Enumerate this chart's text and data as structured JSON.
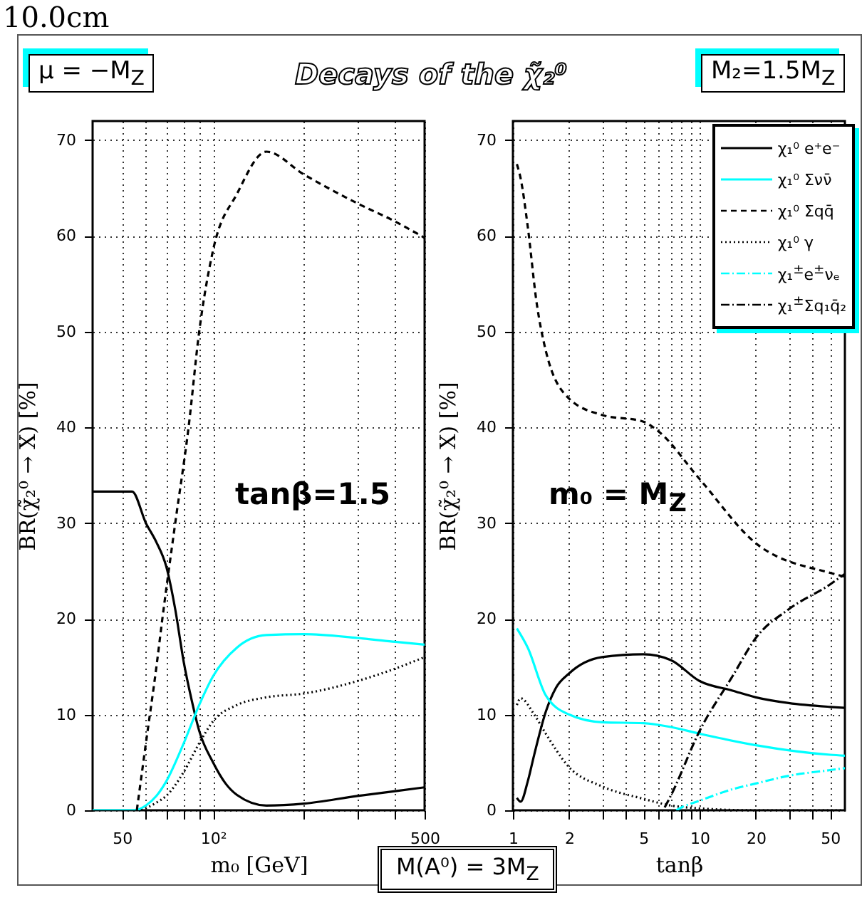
{
  "chart_data": [
    {
      "type": "line",
      "title": "Decays of the χ̃₂⁰",
      "xlabel": "m₀ [GeV]",
      "ylabel": "BR(χ̃₂⁰ → X) [%]",
      "log": "x",
      "grid": true,
      "xlim": [
        40,
        500
      ],
      "ylim": [
        0,
        72
      ],
      "xticks": [
        50,
        {
          "value": 60,
          "label": null
        },
        {
          "value": 70,
          "label": null
        },
        {
          "value": 80,
          "label": null
        },
        {
          "value": 90,
          "label": null
        },
        {
          "value": 100,
          "label": "10²"
        },
        {
          "value": 200,
          "label": null
        },
        {
          "value": 300,
          "label": null
        },
        {
          "value": 400,
          "label": null
        },
        500
      ],
      "yticks": [
        0,
        10,
        20,
        30,
        40,
        50,
        60,
        70
      ],
      "annotations": [
        "μ = −M$_{Z}$",
        "tanβ=1.5",
        "10.0cm"
      ],
      "series": [
        {
          "color": "#000000",
          "line_style": "solid",
          "x": [
            40,
            54,
            60,
            65,
            70,
            75,
            80,
            85,
            90,
            100,
            110,
            120,
            150,
            200,
            300,
            400,
            500
          ],
          "values": [
            33.3,
            33.3,
            30,
            28,
            25.5,
            21,
            15.5,
            11.5,
            8.3,
            5,
            2.8,
            1.6,
            0.5,
            0.7,
            1.5,
            2,
            2.4
          ]
        },
        {
          "color": "#00ffff",
          "line_style": "solid",
          "x": [
            40,
            55,
            60,
            65,
            70,
            80,
            90,
            100,
            120,
            150,
            200,
            300,
            400,
            500
          ],
          "values": [
            0,
            0,
            0.5,
            1.5,
            3,
            7,
            11,
            14,
            17,
            18.3,
            18.4,
            18,
            17.6,
            17.3
          ]
        },
        {
          "color": "#000000",
          "line_style": "dashed",
          "x": [
            56,
            60,
            65,
            68,
            75,
            83,
            90,
            100,
            120,
            150,
            200,
            300,
            400,
            500
          ],
          "values": [
            0,
            7,
            15,
            20,
            30,
            40,
            50,
            58.5,
            64.4,
            68.8,
            66.4,
            63.4,
            61.5,
            59.8
          ]
        },
        {
          "color": "#000000",
          "line_style": "dotted",
          "x": [
            58,
            65,
            70,
            80,
            90,
            100,
            120,
            150,
            200,
            300,
            400,
            500
          ],
          "values": [
            0,
            0.8,
            1.5,
            4,
            7,
            9.3,
            11,
            11.8,
            12.2,
            13.5,
            14.8,
            16
          ]
        }
      ]
    },
    {
      "type": "line",
      "xlabel": "tanβ",
      "ylabel": "BR(χ̃₂⁰ → X) [%]",
      "log": "x",
      "grid": true,
      "legend": "top right",
      "xlim": [
        1,
        60
      ],
      "ylim": [
        0,
        72
      ],
      "xticks": [
        1,
        2,
        {
          "value": 3,
          "label": null
        },
        {
          "value": 4,
          "label": null
        },
        5,
        {
          "value": 6,
          "label": null
        },
        {
          "value": 7,
          "label": null
        },
        {
          "value": 8,
          "label": null
        },
        {
          "value": 9,
          "label": null
        },
        10,
        20,
        {
          "value": 30,
          "label": null
        },
        {
          "value": 40,
          "label": null
        },
        50
      ],
      "yticks": [
        0,
        10,
        20,
        30,
        40,
        50,
        60,
        70
      ],
      "annotations": [
        "M₂=1.5M$_{Z}$",
        "m₀ = M$_{Z}$",
        "M(A⁰) = 3M$_{Z}$"
      ],
      "series": [
        {
          "name": "χ₁⁰ e⁺e⁻",
          "color": "#000000",
          "line_style": "solid",
          "x": [
            1.05,
            1.1,
            1.2,
            1.3,
            1.5,
            1.7,
            2,
            3,
            5,
            7,
            10,
            15,
            20,
            30,
            50,
            60
          ],
          "values": [
            1.3,
            0.9,
            3,
            5.8,
            10.3,
            12.8,
            14.3,
            16,
            16.3,
            15.7,
            13.5,
            12.5,
            11.8,
            11.2,
            10.8,
            10.7
          ]
        },
        {
          "name": "χ₁⁰ Σνν̄",
          "color": "#00ffff",
          "line_style": "solid",
          "x": [
            1.05,
            1.2,
            1.5,
            2,
            3,
            5,
            7,
            10,
            20,
            50,
            60
          ],
          "values": [
            19,
            17,
            12,
            10,
            9.2,
            9.1,
            8.7,
            8,
            6.8,
            5.8,
            5.7
          ]
        },
        {
          "name": "χ₁⁰ Σqq̄",
          "color": "#000000",
          "line_style": "dashed",
          "x": [
            1.05,
            1.1,
            1.2,
            1.34,
            1.5,
            2,
            3,
            5,
            6,
            10,
            20,
            50,
            60
          ],
          "values": [
            67.5,
            66,
            61,
            53,
            48,
            43,
            41.3,
            40.6,
            39.6,
            34.6,
            27.9,
            24.8,
            24.4
          ]
        },
        {
          "name": "χ₁⁰ γ",
          "color": "#000000",
          "line_style": "dotted",
          "x": [
            1.05,
            1.1,
            1.3,
            1.5,
            2,
            3,
            5,
            7,
            10,
            20,
            60
          ],
          "values": [
            11,
            11.7,
            10,
            8,
            4.5,
            2.5,
            1.2,
            0.5,
            0.2,
            0,
            0
          ]
        },
        {
          "name": "χ₁$^{±}$e$^{±}$νₑ",
          "color": "#00ffff",
          "line_style": "dashdot",
          "x": [
            7.5,
            8,
            10,
            15,
            20,
            30,
            50,
            60
          ],
          "values": [
            0,
            0.3,
            1,
            2.2,
            2.8,
            3.6,
            4.2,
            4.4
          ]
        },
        {
          "name": "χ₁$^{±}$Σq₁q̄₂",
          "color": "#000000",
          "line_style": "dashdot",
          "x": [
            6.5,
            7,
            10,
            15,
            20,
            30,
            50,
            60
          ],
          "values": [
            0.3,
            1.5,
            8.3,
            14,
            18,
            21,
            23.6,
            24.7
          ]
        }
      ]
    }
  ]
}
